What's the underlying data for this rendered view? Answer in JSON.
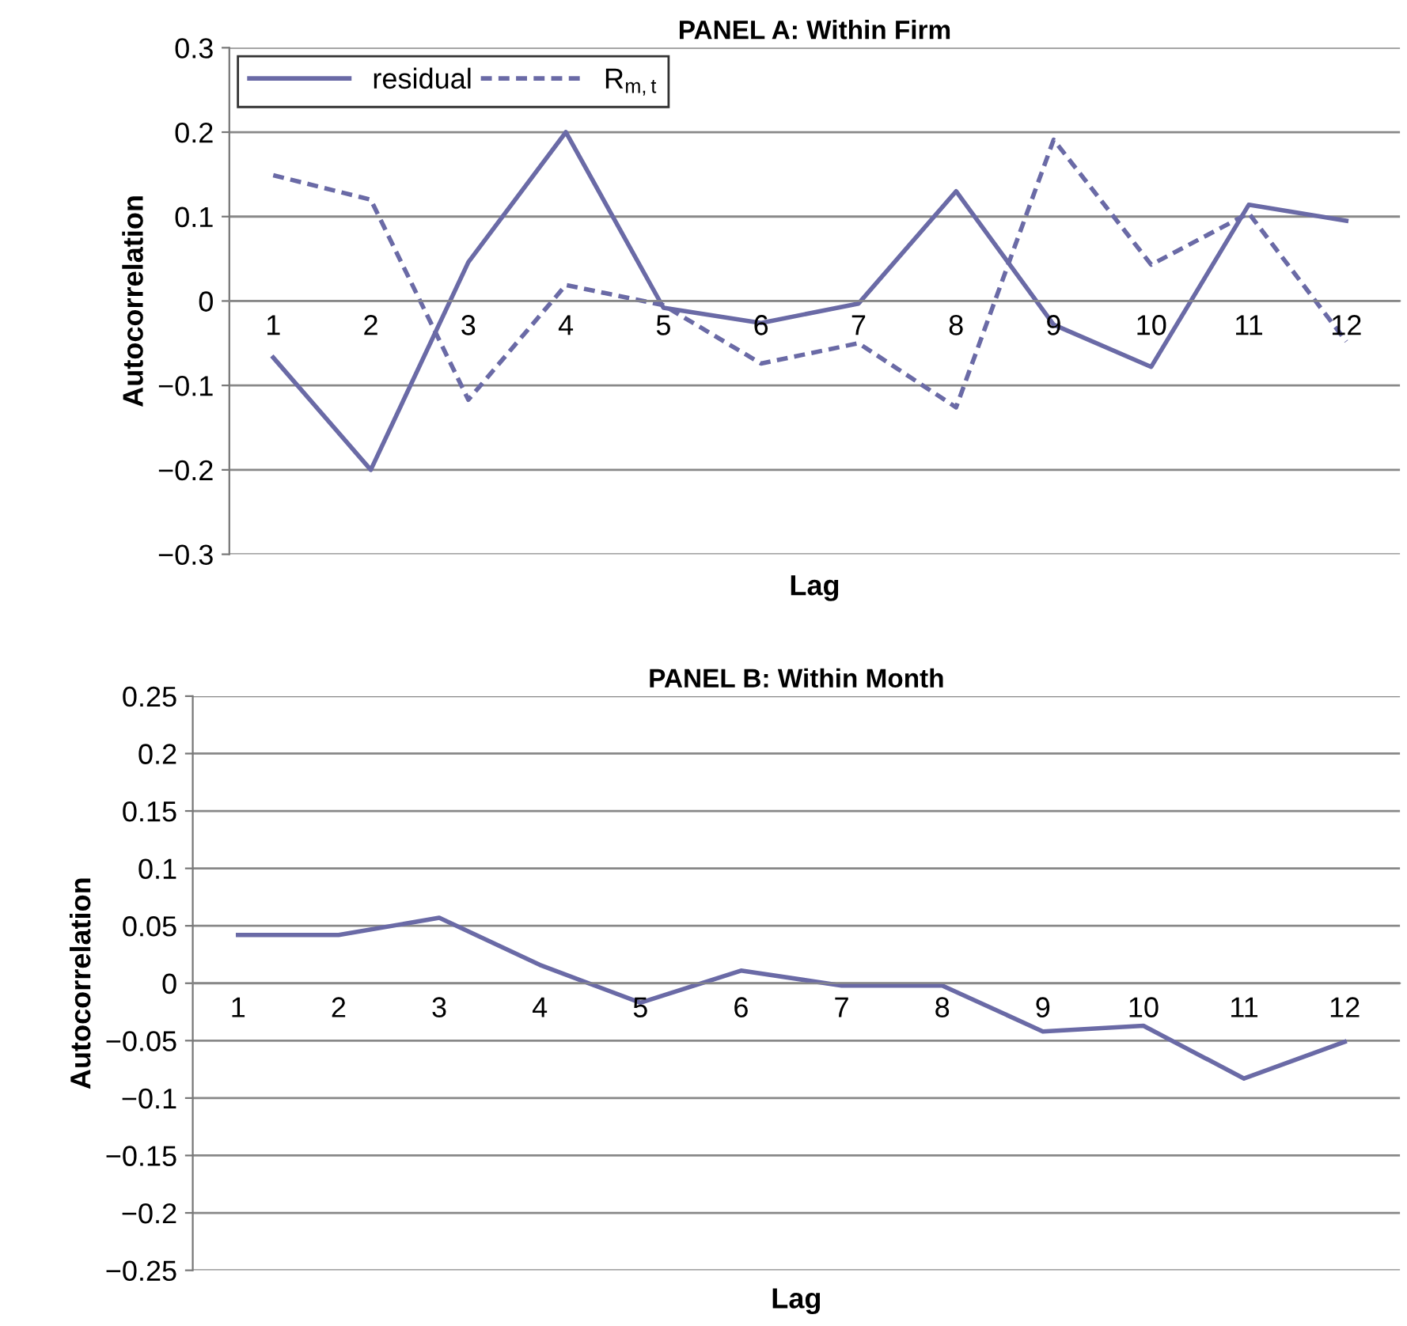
{
  "chart_data": [
    {
      "type": "line",
      "title": "PANEL A: Within Firm",
      "xlabel": "Lag",
      "ylabel": "Autocorrelation",
      "categories": [
        "1",
        "2",
        "3",
        "4",
        "5",
        "6",
        "7",
        "8",
        "9",
        "10",
        "11",
        "12"
      ],
      "series": [
        {
          "name": "residual",
          "color": "#6a6aa6",
          "line_style": "solid",
          "values": [
            -0.067,
            -0.2,
            0.046,
            0.2,
            -0.008,
            -0.026,
            -0.003,
            0.13,
            -0.028,
            -0.078,
            0.114,
            0.095
          ]
        },
        {
          "name": "R$_{m,t}$",
          "color": "#6a6aa6",
          "line_style": "dashed",
          "values": [
            0.149,
            0.12,
            -0.117,
            0.019,
            -0.005,
            -0.074,
            -0.05,
            -0.126,
            0.191,
            0.043,
            0.104,
            -0.048
          ]
        }
      ],
      "ylim": [
        -0.3,
        0.3
      ],
      "yticks": [
        -0.3,
        -0.2,
        -0.1,
        0,
        0.1,
        0.2,
        0.3
      ],
      "grid": "y",
      "legend": "top left",
      "marker": "none"
    },
    {
      "type": "line",
      "title": "PANEL B: Within Month",
      "xlabel": "Lag",
      "ylabel": "Autocorrelation",
      "categories": [
        "1",
        "2",
        "3",
        "4",
        "5",
        "6",
        "7",
        "8",
        "9",
        "10",
        "11",
        "12"
      ],
      "series": [
        {
          "color": "#6a6aa6",
          "line_style": "solid",
          "values": [
            0.042,
            0.042,
            0.057,
            0.016,
            -0.017,
            0.011,
            -0.002,
            -0.002,
            -0.042,
            -0.037,
            -0.083,
            -0.051
          ]
        }
      ],
      "ylim": [
        -0.25,
        0.25
      ],
      "yticks": [
        -0.25,
        -0.2,
        -0.15,
        -0.1,
        -0.05,
        0,
        0.05,
        0.1,
        0.15,
        0.2,
        0.25
      ],
      "grid": "y",
      "legend": false,
      "marker": "none"
    }
  ]
}
